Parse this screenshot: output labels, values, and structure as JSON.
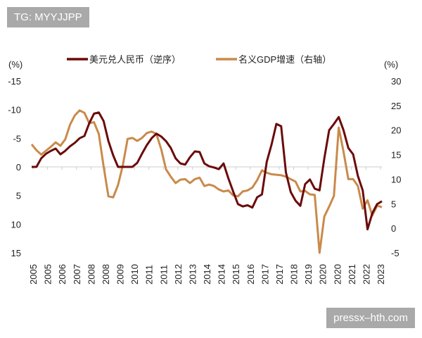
{
  "watermark_top": "TG: MYYJJPP",
  "watermark_bottom": "pressx–hth.com",
  "chart_data": {
    "type": "line",
    "title": "",
    "left_unit": "(%)",
    "right_unit": "(%)",
    "left_axis": {
      "ylim": [
        -15,
        15
      ],
      "reversed": true,
      "ticks": [
        "-15",
        "-10",
        "-5",
        "0",
        "5",
        "10",
        "15"
      ],
      "tick_values": [
        -15,
        -10,
        -5,
        0,
        5,
        10,
        15
      ]
    },
    "right_axis": {
      "ylim": [
        -5,
        30
      ],
      "ticks": [
        "30",
        "25",
        "20",
        "15",
        "10",
        "5",
        "0",
        "-5"
      ],
      "tick_values": [
        30,
        25,
        20,
        15,
        10,
        5,
        0,
        -5
      ]
    },
    "x_tick_labels": [
      "2005",
      "2005",
      "2006",
      "2007",
      "2008",
      "2008",
      "2009",
      "2010",
      "2011",
      "2011",
      "2012",
      "2013",
      "2014",
      "2014",
      "2015",
      "2016",
      "2017",
      "2017",
      "2018",
      "2019",
      "2020",
      "2020",
      "2021",
      "2022",
      "2023"
    ],
    "legend_position": "top",
    "grid": false,
    "series": [
      {
        "name": "美元兑人民币（逆序）",
        "axis": "left",
        "color": "#6b0a0a",
        "values": [
          0,
          0,
          -1.5,
          -2.3,
          -2.8,
          -3.2,
          -2.2,
          -2.8,
          -3.6,
          -4.2,
          -5,
          -5.4,
          -7.6,
          -9.3,
          -9.5,
          -8,
          -4.5,
          -2,
          0,
          0,
          0,
          0,
          -0.7,
          -2.3,
          -3.8,
          -5,
          -5.8,
          -5.3,
          -4.5,
          -3.3,
          -1.5,
          -0.6,
          -0.4,
          -1.7,
          -2.7,
          -2.6,
          -0.6,
          -0.1,
          0.1,
          0.4,
          -0.6,
          2,
          4.3,
          6.5,
          6.9,
          6.7,
          7.1,
          5.3,
          4.8,
          -0.9,
          -3.9,
          -7.5,
          -7.1,
          1,
          4.4,
          5.9,
          6.8,
          3,
          2.2,
          3.8,
          4.1,
          -1.5,
          -6.4,
          -7.5,
          -8.7,
          -6.4,
          -3.3,
          -2.2,
          1.6,
          4.1,
          10.9,
          8.1,
          6.5,
          6
        ]
      },
      {
        "name": "名义GDP增速（右轴）",
        "axis": "right",
        "color": "#c98a4b",
        "values": [
          17.1,
          15.9,
          15,
          15.8,
          16.6,
          17.5,
          16.8,
          18.1,
          21.1,
          23,
          24,
          23.5,
          21.4,
          21.6,
          19.2,
          12.6,
          6.5,
          6.3,
          8.8,
          12.8,
          18.2,
          18.4,
          17.8,
          18.4,
          19.4,
          19.7,
          19.2,
          16.1,
          12,
          10.5,
          9.2,
          9.9,
          10,
          9.2,
          10,
          10.3,
          8.6,
          8.9,
          8.6,
          7.9,
          7.5,
          7.7,
          6.7,
          6.5,
          7.5,
          7.7,
          8.3,
          9.8,
          11.8,
          11.3,
          11,
          10.9,
          10.8,
          10.5,
          10,
          9.5,
          7.5,
          7.6,
          6.9,
          6.8,
          -5,
          2.4,
          4.4,
          6.6,
          20.5,
          15.6,
          10,
          10,
          8.6,
          4,
          5.7,
          2.6,
          4.6,
          4.3
        ]
      }
    ]
  }
}
